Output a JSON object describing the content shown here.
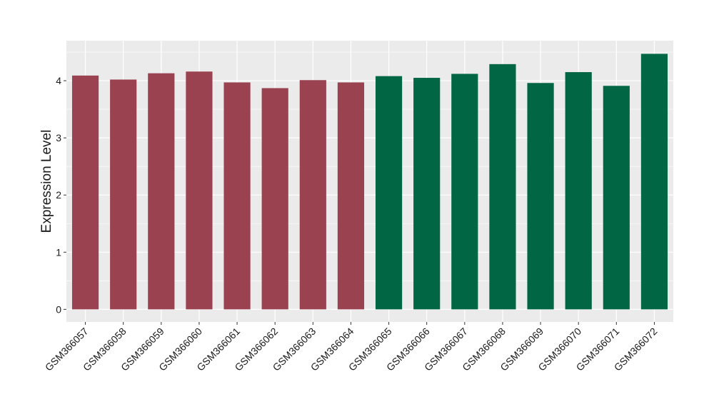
{
  "chart_data": {
    "type": "bar",
    "title": "",
    "xlabel": "",
    "ylabel": "Expression Level",
    "ylim": [
      -0.22,
      4.7
    ],
    "yticks": [
      0,
      1,
      2,
      3,
      4
    ],
    "grid": true,
    "legend": "none",
    "categories": [
      "GSM366057",
      "GSM366058",
      "GSM366059",
      "GSM366060",
      "GSM366061",
      "GSM366062",
      "GSM366063",
      "GSM366064",
      "GSM366065",
      "GSM366066",
      "GSM366067",
      "GSM366068",
      "GSM366069",
      "GSM366070",
      "GSM366071",
      "GSM366072"
    ],
    "values": [
      4.09,
      4.02,
      4.13,
      4.16,
      3.97,
      3.87,
      4.01,
      3.97,
      4.08,
      4.05,
      4.12,
      4.29,
      3.96,
      4.15,
      3.91,
      4.47
    ],
    "bar_colors": [
      "#9a4250",
      "#9a4250",
      "#9a4250",
      "#9a4250",
      "#9a4250",
      "#9a4250",
      "#9a4250",
      "#9a4250",
      "#006644",
      "#006644",
      "#006644",
      "#006644",
      "#006644",
      "#006644",
      "#006644",
      "#006644"
    ],
    "panel_background": "#ebebeb",
    "grid_color": "#ffffff"
  }
}
